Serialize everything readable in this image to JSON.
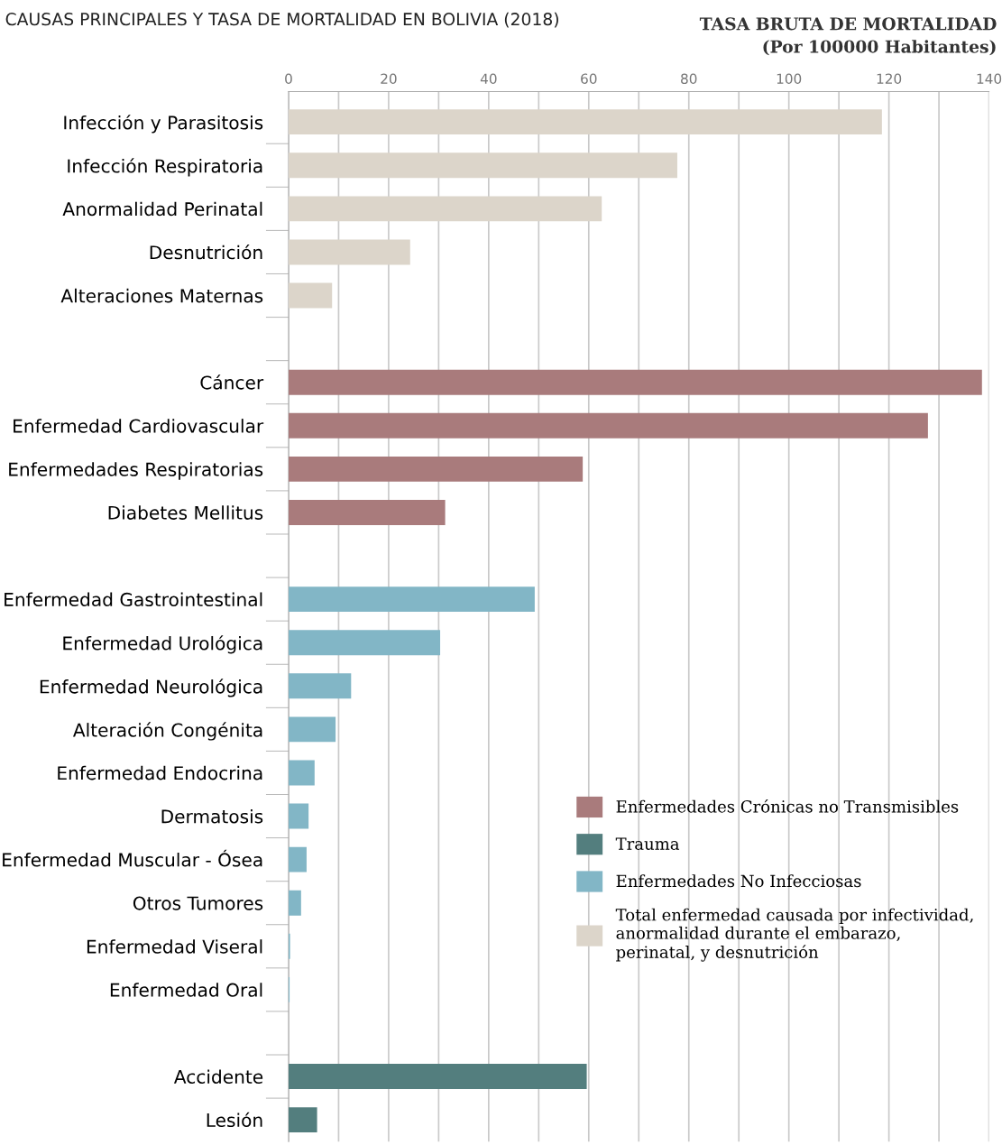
{
  "chart_data": {
    "type": "bar",
    "orientation": "horizontal",
    "title": "CAUSAS PRINCIPALES Y TASA DE MORTALIDAD EN BOLIVIA (2018)",
    "xlabel": "TASA BRUTA DE MORTALIDAD\n(Por 100000 Habitantes)",
    "categories": [
      "Infección y Parasitosis",
      "Infección Respiratoria",
      "Anormalidad Perinatal",
      "Desnutrición",
      "Alteraciones Maternas",
      null,
      "Cáncer",
      "Enfermedad Cardiovascular",
      "Enfermedades Respiratorias",
      "Diabetes Mellitus",
      null,
      "Enfermedad Gastrointestinal",
      "Enfermedad Urológica",
      "Enfermedad Neurológica",
      "Alteración Congénita",
      "Enfermedad Endocrina",
      "Dermatosis",
      "Enfermedad Muscular - Ósea",
      "Otros Tumores",
      "Enfermedad Viseral",
      "Enfermedad Oral",
      null,
      "Accidente",
      "Lesión"
    ],
    "series": [
      {
        "name": "Enfermedades Crónicas no Transmisibles",
        "color": "#a97b7c",
        "values": [
          null,
          null,
          null,
          null,
          null,
          null,
          138.6,
          127.8,
          58.8,
          31.3,
          null,
          null,
          null,
          null,
          null,
          null,
          null,
          null,
          null,
          null,
          null,
          null,
          null,
          null
        ]
      },
      {
        "name": "Trauma",
        "color": "#537e7e",
        "values": [
          null,
          null,
          null,
          null,
          null,
          null,
          null,
          null,
          null,
          null,
          null,
          null,
          null,
          null,
          null,
          null,
          null,
          null,
          null,
          null,
          null,
          null,
          59.6,
          5.7
        ]
      },
      {
        "name": "Enfermedades No Infecciosas",
        "color": "#82b6c6",
        "values": [
          null,
          null,
          null,
          null,
          null,
          null,
          null,
          null,
          null,
          null,
          null,
          49.2,
          30.3,
          12.5,
          9.4,
          5.2,
          4.0,
          3.6,
          2.5,
          0.3,
          0.2,
          null,
          null,
          null
        ]
      },
      {
        "name": "Total enfermedad causada por infectividad,\nanormalidad durante el embarazo,\nperinatal, y desnutrición",
        "color": "#dcd5ca",
        "values": [
          118.6,
          77.7,
          62.6,
          24.3,
          8.7,
          null,
          null,
          null,
          null,
          null,
          null,
          null,
          null,
          null,
          null,
          null,
          null,
          null,
          null,
          null,
          null,
          null,
          null,
          null
        ]
      }
    ],
    "xlim": [
      0,
      140
    ],
    "xticks": [
      0,
      {
        "value": 10,
        "label": null
      },
      20,
      {
        "value": 30,
        "label": null
      },
      40,
      {
        "value": 50,
        "label": null
      },
      60,
      {
        "value": 70,
        "label": null
      },
      80,
      {
        "value": 90,
        "label": null
      },
      100,
      {
        "value": 110,
        "label": null
      },
      120,
      {
        "value": 130,
        "label": null
      },
      140
    ],
    "grid": "x",
    "legend": "right"
  }
}
